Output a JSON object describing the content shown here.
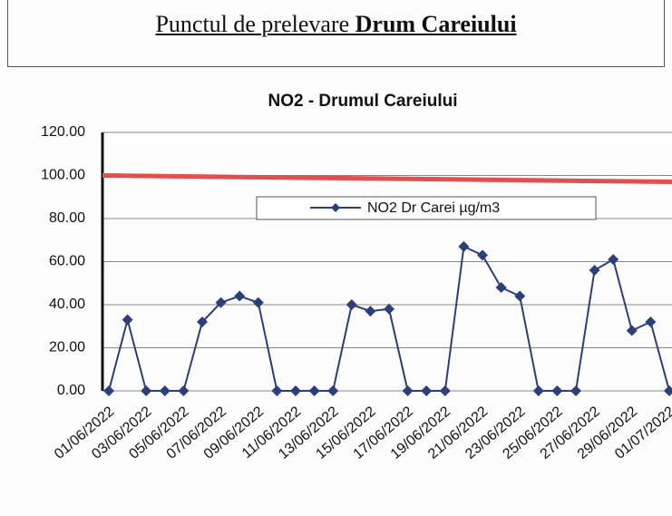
{
  "header": {
    "text": "Punctul de prelevare",
    "bold": "Drum Careiului"
  },
  "chart_data": {
    "type": "line",
    "title": "NO2 - Drumul Careiului",
    "categories": [
      "01/06/2022",
      null,
      "03/06/2022",
      null,
      "05/06/2022",
      null,
      "07/06/2022",
      null,
      "09/06/2022",
      null,
      "11/06/2022",
      null,
      "13/06/2022",
      null,
      "15/06/2022",
      null,
      "17/06/2022",
      null,
      "19/06/2022",
      null,
      "21/06/2022",
      null,
      "23/06/2022",
      null,
      "25/06/2022",
      null,
      "27/06/2022",
      null,
      "29/06/2022",
      null,
      "01/07/2022"
    ],
    "series": [
      {
        "name": "NO2 Dr Carei  µg/m3",
        "color": "#2b3f7a",
        "values": [
          0,
          33,
          0,
          0,
          0,
          32,
          41,
          44,
          41,
          0,
          0,
          0,
          0,
          40,
          37,
          38,
          0,
          0,
          0,
          67,
          63,
          48,
          44,
          0,
          0,
          0,
          56,
          61,
          28,
          32,
          0
        ]
      }
    ],
    "threshold": 100,
    "threshold_color": "#e05050",
    "ylim": [
      0,
      120
    ],
    "yticks": [
      {
        "value": 0,
        "label": "0.00"
      },
      {
        "value": 20,
        "label": "20.00"
      },
      {
        "value": 40,
        "label": "40.00"
      },
      {
        "value": 60,
        "label": "60.00"
      },
      {
        "value": 80,
        "label": "80.00"
      },
      {
        "value": 100,
        "label": "100.00"
      },
      {
        "value": 120,
        "label": "120.00"
      }
    ],
    "grid": true
  }
}
